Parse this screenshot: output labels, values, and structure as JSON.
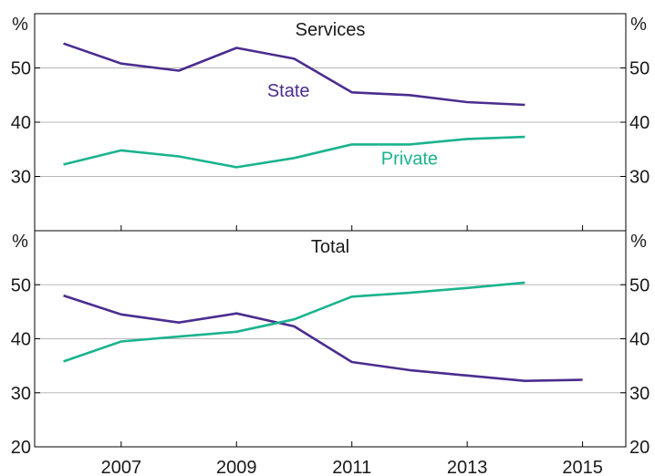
{
  "chart_data": [
    {
      "type": "line",
      "title": "Services",
      "unit_left": "%",
      "unit_right": "%",
      "ylim": [
        20,
        60
      ],
      "yticks": [
        30,
        40,
        50
      ],
      "xlim": [
        2005.5,
        2015.75
      ],
      "xticks": [
        2007,
        2009,
        2011,
        2013,
        2015
      ],
      "grid": true,
      "series": [
        {
          "name": "State",
          "color": "#4b2d8f",
          "label_at": [
            2009.9,
            44.7
          ],
          "x": [
            2006,
            2007,
            2008,
            2009,
            2010,
            2011,
            2012,
            2013,
            2014
          ],
          "y": [
            54.5,
            50.8,
            49.5,
            53.7,
            51.7,
            45.5,
            45.0,
            43.7,
            43.2
          ]
        },
        {
          "name": "Private",
          "color": "#1bb38e",
          "label_at": [
            2012.0,
            32.2
          ],
          "x": [
            2006,
            2007,
            2008,
            2009,
            2010,
            2011,
            2012,
            2013,
            2014
          ],
          "y": [
            32.2,
            34.8,
            33.7,
            31.7,
            33.4,
            35.9,
            35.9,
            36.9,
            37.3
          ]
        }
      ]
    },
    {
      "type": "line",
      "title": "Total",
      "unit_left": "%",
      "unit_right": "%",
      "ylim": [
        20,
        60
      ],
      "yticks": [
        20,
        30,
        40,
        50
      ],
      "xlim": [
        2005.5,
        2015.75
      ],
      "xticks": [
        2007,
        2009,
        2011,
        2013,
        2015
      ],
      "xticklabels": [
        "2007",
        "2009",
        "2011",
        "2013",
        "2015"
      ],
      "grid": true,
      "series": [
        {
          "name": "State",
          "color": "#4b2d8f",
          "x": [
            2006,
            2007,
            2008,
            2009,
            2010,
            2011,
            2012,
            2013,
            2014,
            2015
          ],
          "y": [
            48.0,
            44.5,
            43.0,
            44.7,
            42.3,
            35.7,
            34.2,
            33.2,
            32.2,
            32.4
          ]
        },
        {
          "name": "Private",
          "color": "#1bb38e",
          "x": [
            2006,
            2007,
            2008,
            2009,
            2010,
            2011,
            2012,
            2013,
            2014
          ],
          "y": [
            35.8,
            39.5,
            40.4,
            41.3,
            43.6,
            47.8,
            48.5,
            49.4,
            50.4
          ]
        }
      ]
    }
  ]
}
